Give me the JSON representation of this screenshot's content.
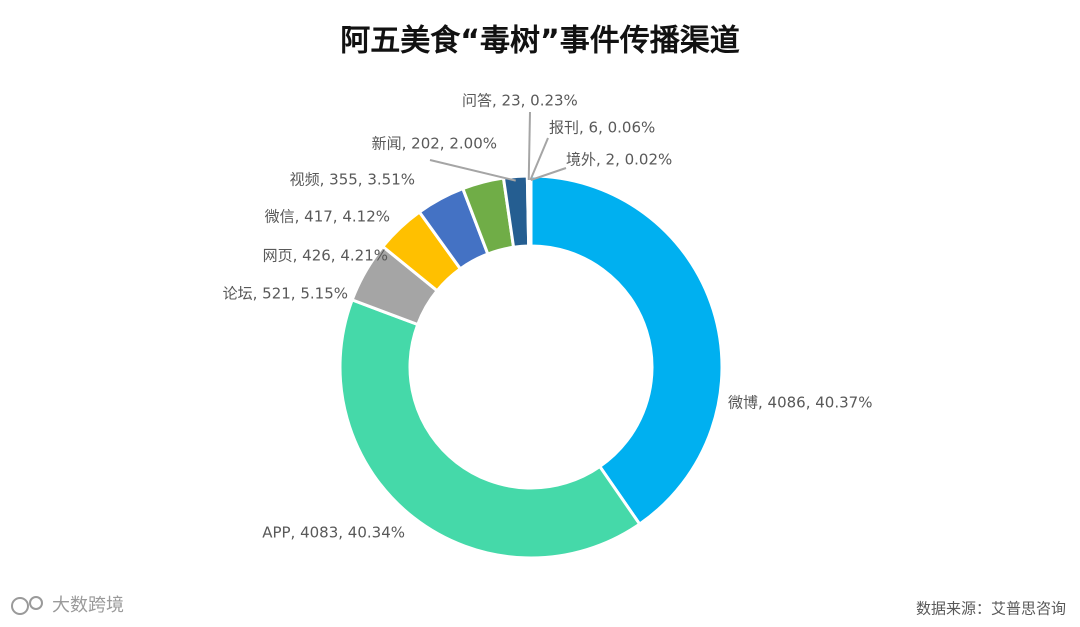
{
  "chart_data": {
    "type": "donut",
    "title": "阿五美食“毒树”事件传播渠道",
    "categories": [
      "微博",
      "APP",
      "论坛",
      "网页",
      "微信",
      "视频",
      "新闻",
      "问答",
      "报刊",
      "境外"
    ],
    "values": [
      4086,
      4083,
      521,
      426,
      417,
      355,
      202,
      23,
      6,
      2
    ],
    "value_labels": [
      "微博, 4086, 40.37%",
      "APP, 4083, 40.34%",
      "论坛, 521, 5.15%",
      "网页, 426, 4.21%",
      "微信, 417, 4.12%",
      "视频, 355, 3.51%",
      "新闻, 202, 2.00%",
      "问答, 23, 0.23%",
      "报刊, 6, 0.06%",
      "境外, 2, 0.02%"
    ],
    "colors": [
      "#00b0f0",
      "#45d9a9",
      "#a5a5a5",
      "#ffc000",
      "#4472c4",
      "#70ad47",
      "#255e91",
      "#9e480e",
      "#636363",
      "#997300"
    ],
    "brand": "大数跨境",
    "source": "数据来源：艾普思咨询"
  }
}
